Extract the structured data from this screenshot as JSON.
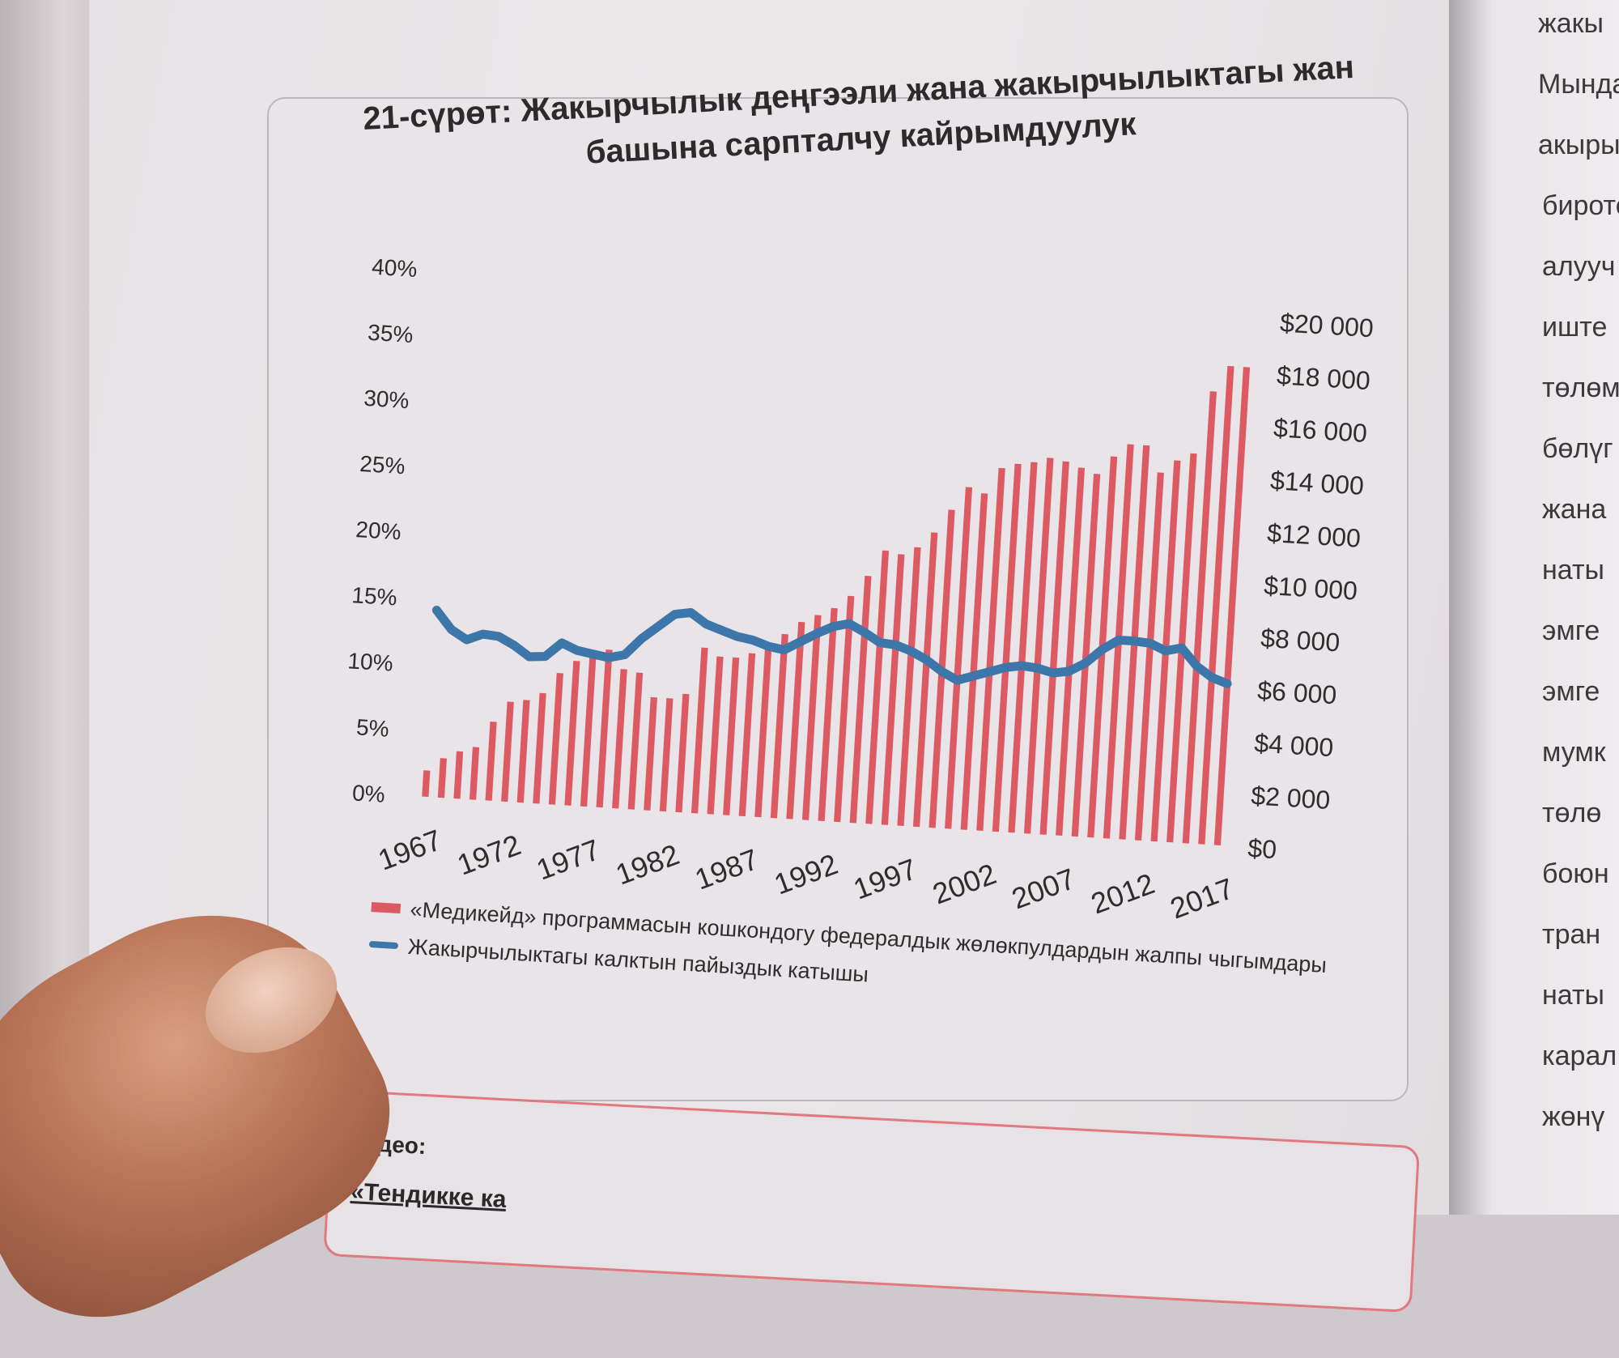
{
  "figure": {
    "title_line1": "21-сүрөт: Жакырчылык деңгээли жана жакырчылыктагы жан",
    "title_line2": "башына сарпталчу кайрымдуулук"
  },
  "legend": {
    "bar_label": "«Медикейд» программасын кошкондогу федералдык жөлөкпулдардын жалпы чыгымдары",
    "line_label": "Жакырчылыктагы калктын пайыздык катышы"
  },
  "video": {
    "label": "Видео:",
    "title": "«Тендикке ка"
  },
  "right_page_words": [
    "жакы",
    "Мында",
    "акыры",
    "бирото",
    "алууч",
    "иште",
    "төлөм",
    "бөлүг",
    "жана",
    "наты",
    "эмге",
    "эмге",
    "мумк",
    "төлө",
    "боюн",
    "тран",
    "наты",
    "карал",
    "жөнү"
  ],
  "colors": {
    "bar": "#de5a63",
    "line": "#3d76a8"
  },
  "chart_data": {
    "type": "bar",
    "x": [
      1967,
      1968,
      1969,
      1970,
      1971,
      1972,
      1973,
      1974,
      1975,
      1976,
      1977,
      1978,
      1979,
      1980,
      1981,
      1982,
      1983,
      1984,
      1985,
      1986,
      1987,
      1988,
      1989,
      1990,
      1991,
      1992,
      1993,
      1994,
      1995,
      1996,
      1997,
      1998,
      1999,
      2000,
      2001,
      2002,
      2003,
      2004,
      2005,
      2006,
      2007,
      2008,
      2009,
      2010,
      2011,
      2012,
      2013,
      2014,
      2015,
      2016,
      2017
    ],
    "x_tick_labels": [
      "1967",
      "1972",
      "1977",
      "1982",
      "1987",
      "1992",
      "1997",
      "2002",
      "2007",
      "2012",
      "2017"
    ],
    "series": [
      {
        "name": "«Медикейд» программасын кошкондогу федералдык жөлөкпулдардын жалпы чыгымдары",
        "type": "bar",
        "axis": "right",
        "values": [
          1000,
          1500,
          1800,
          2000,
          3000,
          3800,
          3900,
          4200,
          5000,
          5500,
          5700,
          6000,
          5300,
          5200,
          4300,
          4300,
          4500,
          6300,
          6000,
          6000,
          6200,
          6500,
          7000,
          7500,
          7800,
          8100,
          8600,
          9400,
          10400,
          10300,
          10600,
          11200,
          12100,
          13000,
          12800,
          13800,
          14000,
          14100,
          14300,
          14200,
          14000,
          13800,
          14500,
          15000,
          15000,
          14000,
          14500,
          14800,
          17200,
          18200,
          18200
        ]
      },
      {
        "name": "Жакырчылыктагы калктын пайыздык катышы",
        "type": "line",
        "axis": "left",
        "values": [
          14.2,
          12.8,
          12.1,
          12.6,
          12.5,
          11.9,
          11.1,
          11.2,
          12.3,
          11.8,
          11.6,
          11.4,
          11.7,
          13.0,
          14.0,
          15.0,
          15.2,
          14.4,
          14.0,
          13.6,
          13.4,
          13.0,
          12.8,
          13.5,
          14.2,
          14.8,
          15.1,
          14.5,
          13.8,
          13.7,
          13.3,
          12.7,
          11.9,
          11.3,
          11.7,
          12.1,
          12.5,
          12.7,
          12.6,
          12.3,
          12.5,
          13.2,
          14.3,
          15.1,
          15.1,
          15.0,
          14.5,
          14.8,
          13.5,
          12.7,
          12.3
        ]
      }
    ],
    "y_left": {
      "ticks": [
        "0%",
        "5%",
        "10%",
        "15%",
        "20%",
        "25%",
        "30%",
        "35%",
        "40%"
      ],
      "range": [
        0,
        40
      ]
    },
    "y_right": {
      "ticks": [
        "$0",
        "$2 000",
        "$4 000",
        "$6 000",
        "$8 000",
        "$10 000",
        "$12 000",
        "$14 000",
        "$16 000",
        "$18 000",
        "$20 000"
      ],
      "range": [
        0,
        20000
      ]
    },
    "grid": false,
    "legend_position": "bottom-left"
  }
}
